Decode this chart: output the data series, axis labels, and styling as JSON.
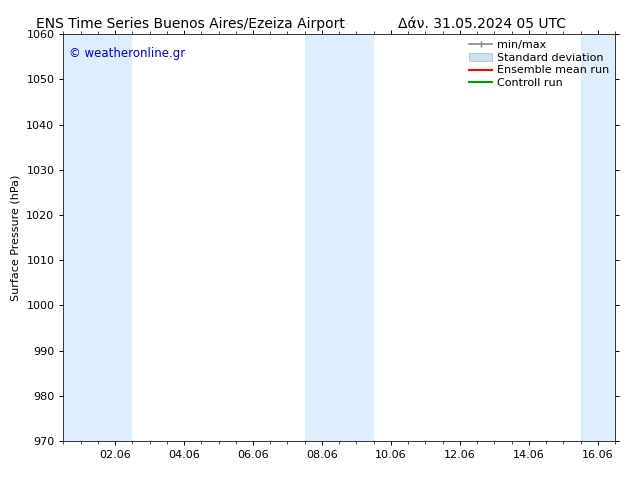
{
  "title_left": "ENS Time Series Buenos Aires/Ezeiza Airport",
  "title_right": "Δάν. 31.05.2024 05 UTC",
  "ylabel": "Surface Pressure (hPa)",
  "watermark": "© weatheronline.gr",
  "watermark_color": "#0000cc",
  "ylim": [
    970,
    1060
  ],
  "yticks": [
    970,
    980,
    990,
    1000,
    1010,
    1020,
    1030,
    1040,
    1050,
    1060
  ],
  "xtick_labels": [
    "02.06",
    "04.06",
    "06.06",
    "08.06",
    "10.06",
    "12.06",
    "14.06",
    "16.06"
  ],
  "xtick_positions": [
    2,
    4,
    6,
    8,
    10,
    12,
    14,
    16
  ],
  "xmin": 0.5,
  "xmax": 16.5,
  "shaded_bands": [
    {
      "xmin": 0.5,
      "xmax": 1.5,
      "color": "#ddeeff"
    },
    {
      "xmin": 1.5,
      "xmax": 2.5,
      "color": "#ddeeff"
    },
    {
      "xmin": 7.5,
      "xmax": 8.5,
      "color": "#ddeeff"
    },
    {
      "xmin": 8.5,
      "xmax": 9.5,
      "color": "#ddeeff"
    },
    {
      "xmin": 15.5,
      "xmax": 16.5,
      "color": "#ddeeff"
    }
  ],
  "legend_labels": [
    "min/max",
    "Standard deviation",
    "Ensemble mean run",
    "Controll run"
  ],
  "legend_colors_fill": [
    "#cccccc",
    "#cce0f0",
    "#ff0000",
    "#009900"
  ],
  "legend_colors_line": [
    "#888888",
    "#aabbcc",
    "#ff0000",
    "#009900"
  ],
  "background_color": "#ffffff",
  "plot_bg_color": "#ffffff",
  "title_fontsize": 10,
  "axis_fontsize": 8,
  "tick_fontsize": 8,
  "legend_fontsize": 8
}
